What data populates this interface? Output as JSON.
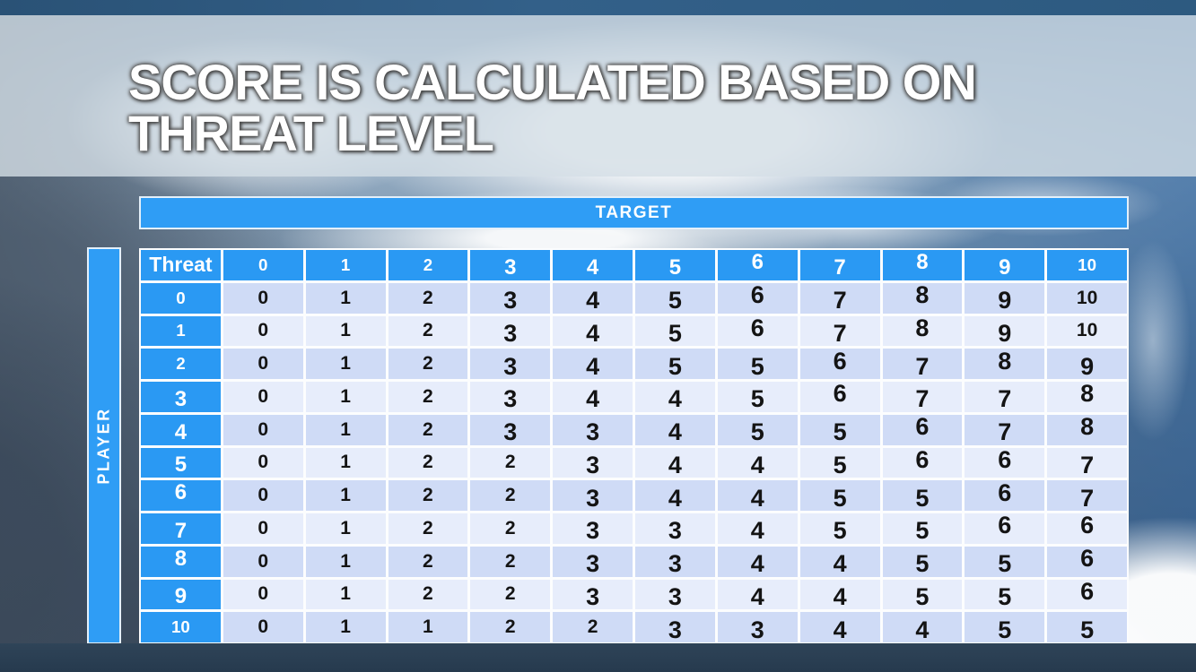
{
  "slide": {
    "title_line1": "SCORE IS CALCULATED BASED ON",
    "title_line2": "THREAT LEVEL"
  },
  "matrix": {
    "column_axis_label": "TARGET",
    "row_axis_label": "PLAYER",
    "corner_label": "Threat",
    "column_headers": [
      "0",
      "1",
      "2",
      "3",
      "4",
      "5",
      "6",
      "7",
      "8",
      "9",
      "10"
    ],
    "row_headers": [
      "0",
      "1",
      "2",
      "3",
      "4",
      "5",
      "6",
      "7",
      "8",
      "9",
      "10"
    ],
    "rows": [
      [
        0,
        1,
        2,
        3,
        4,
        5,
        6,
        7,
        8,
        9,
        10
      ],
      [
        0,
        1,
        2,
        3,
        4,
        5,
        6,
        7,
        8,
        9,
        10
      ],
      [
        0,
        1,
        2,
        3,
        4,
        5,
        5,
        6,
        7,
        8,
        9
      ],
      [
        0,
        1,
        2,
        3,
        4,
        4,
        5,
        6,
        7,
        7,
        8
      ],
      [
        0,
        1,
        2,
        3,
        3,
        4,
        5,
        5,
        6,
        7,
        8
      ],
      [
        0,
        1,
        2,
        2,
        3,
        4,
        4,
        5,
        6,
        6,
        7
      ],
      [
        0,
        1,
        2,
        2,
        3,
        4,
        4,
        5,
        5,
        6,
        7
      ],
      [
        0,
        1,
        2,
        2,
        3,
        3,
        4,
        5,
        5,
        6,
        6
      ],
      [
        0,
        1,
        2,
        2,
        3,
        3,
        4,
        4,
        5,
        5,
        6
      ],
      [
        0,
        1,
        2,
        2,
        3,
        3,
        4,
        4,
        5,
        5,
        6
      ],
      [
        0,
        1,
        1,
        2,
        2,
        3,
        3,
        4,
        4,
        5,
        5
      ]
    ]
  },
  "colors": {
    "accent_blue": "#2f9df5",
    "header_blue": "#2a99f3",
    "row_stripe_dark": "#cfdbf6",
    "row_stripe_light": "#e7edfb",
    "body_text": "#141414",
    "top_bar": "#2e5b80",
    "bottom_bar": "#2b3e52",
    "title_band": "rgba(213,222,230,0.8)",
    "title_text": "#ffffff"
  }
}
